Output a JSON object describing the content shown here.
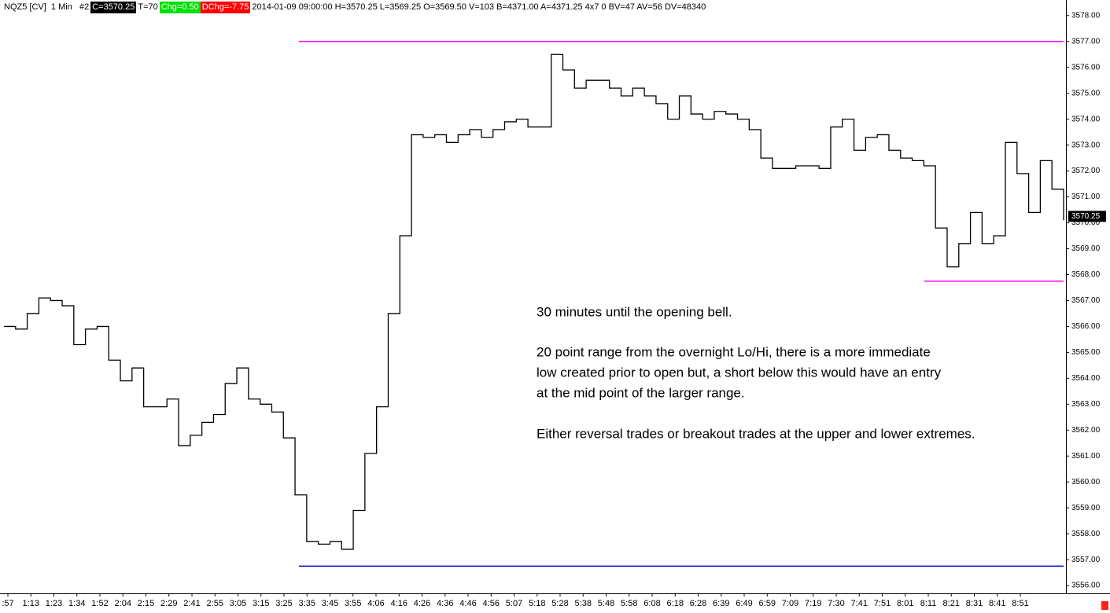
{
  "chart_data": {
    "type": "line",
    "header": [
      {
        "text": "NQZ5 [CV]  1 Min   #2",
        "color": "#000000",
        "background": "transparent"
      },
      {
        "text": "C=3570.25",
        "color": "#ffffff",
        "background": "#000000"
      },
      {
        "text": "T=70",
        "color": "#000000",
        "background": "transparent"
      },
      {
        "text": "Chg=0.50",
        "color": "#ffffff",
        "background": "#00e000"
      },
      {
        "text": "DChg=-7.75",
        "color": "#ffffff",
        "background": "#ff0000"
      },
      {
        "text": "2014-01-09 09:00:00 H=3570.25 L=3569.25 O=3569.50 V=103 B=4371.00 A=4371.25 4x7 0 BV=47 AV=56 DV=48340",
        "color": "#000000",
        "background": "transparent"
      }
    ],
    "xticks": [
      ":57",
      "1:13",
      "1:23",
      "1:34",
      "1:52",
      "2:04",
      "2:15",
      "2:29",
      "2:41",
      "2:55",
      "3:05",
      "3:15",
      "3:25",
      "3:35",
      "3:45",
      "3:55",
      "4:06",
      "4:16",
      "4:26",
      "4:36",
      "4:46",
      "4:56",
      "5:07",
      "5:18",
      "5:28",
      "5:38",
      "5:48",
      "5:58",
      "6:08",
      "6:18",
      "6:28",
      "6:39",
      "6:49",
      "6:59",
      "7:09",
      "7:19",
      "7:30",
      "7:41",
      "7:51",
      "8:01",
      "8:11",
      "8:21",
      "8:31",
      "8:41",
      "8:51"
    ],
    "series": [
      {
        "name": "NQZ5",
        "color": "#000000",
        "values": [
          3566.0,
          3565.9,
          3566.5,
          3567.1,
          3567.0,
          3566.8,
          3565.3,
          3565.9,
          3566.0,
          3564.7,
          3563.9,
          3564.4,
          3562.9,
          3562.9,
          3563.2,
          3561.4,
          3561.8,
          3562.3,
          3562.6,
          3563.8,
          3564.4,
          3563.2,
          3563.0,
          3562.7,
          3561.7,
          3559.5,
          3557.7,
          3557.6,
          3557.7,
          3557.4,
          3558.9,
          3561.1,
          3562.9,
          3566.5,
          3569.5,
          3573.4,
          3573.3,
          3573.4,
          3573.1,
          3573.4,
          3573.6,
          3573.3,
          3573.6,
          3573.9,
          3574.0,
          3573.7,
          3573.7,
          3576.5,
          3575.9,
          3575.2,
          3575.5,
          3575.5,
          3575.2,
          3574.9,
          3575.2,
          3574.9,
          3574.6,
          3574.0,
          3574.9,
          3574.2,
          3574.0,
          3574.3,
          3574.2,
          3574.0,
          3573.6,
          3572.5,
          3572.1,
          3572.1,
          3572.2,
          3572.2,
          3572.1,
          3573.7,
          3574.0,
          3572.8,
          3573.3,
          3573.4,
          3572.8,
          3572.5,
          3572.4,
          3572.2,
          3569.8,
          3568.3,
          3569.2,
          3570.4,
          3569.2,
          3569.5,
          3573.1,
          3571.9,
          3570.4,
          3572.4,
          3571.3,
          3570.1
        ]
      }
    ],
    "ylim": [
      3555.7,
      3578.6
    ],
    "yticks": [
      {
        "value": 3556,
        "label": "3556.00"
      },
      {
        "value": 3557,
        "label": "3557.00"
      },
      {
        "value": 3558,
        "label": "3558.00"
      },
      {
        "value": 3559,
        "label": "3559.00"
      },
      {
        "value": 3560,
        "label": "3560.00"
      },
      {
        "value": 3561,
        "label": "3561.00"
      },
      {
        "value": 3562,
        "label": "3562.00"
      },
      {
        "value": 3563,
        "label": "3563.00"
      },
      {
        "value": 3564,
        "label": "3564.00"
      },
      {
        "value": 3565,
        "label": "3565.00"
      },
      {
        "value": 3566,
        "label": "3566.00"
      },
      {
        "value": 3567,
        "label": "3567.00"
      },
      {
        "value": 3568,
        "label": "3568.00"
      },
      {
        "value": 3569,
        "label": "3569.00"
      },
      {
        "value": 3570,
        "label": "3570.00"
      },
      {
        "value": 3571,
        "label": "3571.00"
      },
      {
        "value": 3572,
        "label": "3572.00"
      },
      {
        "value": 3573,
        "label": "3573.00"
      },
      {
        "value": 3574,
        "label": "3574.00"
      },
      {
        "value": 3575,
        "label": "3575.00"
      },
      {
        "value": 3576,
        "label": "3576.00"
      },
      {
        "value": 3577,
        "label": "3577.00"
      },
      {
        "value": 3578,
        "label": "3578.00"
      }
    ],
    "last_price": {
      "value": 3570.25,
      "label": "3570.25"
    },
    "levels": [
      {
        "value": 3577,
        "color": "#ff00ff"
      },
      {
        "value": 3567.75,
        "color": "#ff00ff"
      },
      {
        "value": 3556.75,
        "color": "#0000cc"
      }
    ],
    "annotation": [
      "30 minutes until the opening bell.",
      "20 point range from the overnight Lo/Hi, there is a more immediate",
      "low created prior to open but, a short below this would have an entry",
      "at the mid point of the larger range.",
      "Either reversal trades or breakout trades at the upper and lower extremes."
    ]
  }
}
